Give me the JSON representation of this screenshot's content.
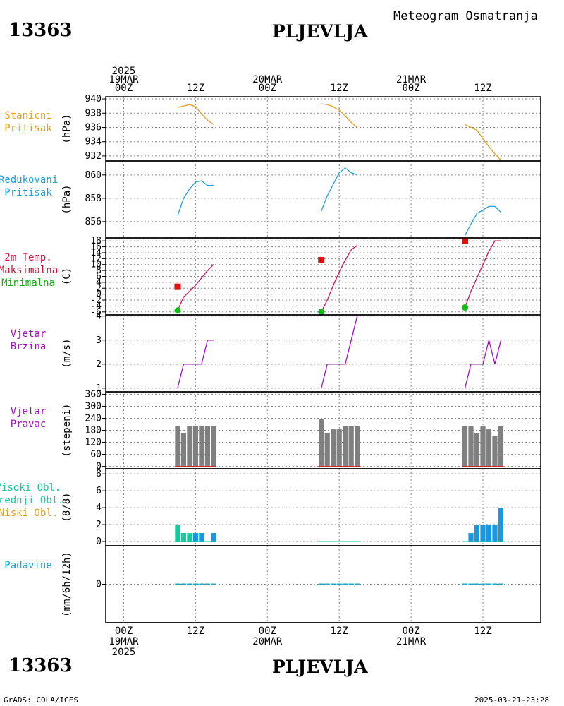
{
  "header": {
    "station_id": "13363",
    "station_name": "PLJEVLJA",
    "chart_title": "Meteogram Osmatranja"
  },
  "footer": {
    "station_id": "13363",
    "station_name": "PLJEVLJA",
    "credit": "GrADS: COLA/IGES",
    "timestamp": "2025-03-21-23:28"
  },
  "time_axis": {
    "hours_from_start": [
      0,
      12,
      24,
      36,
      48,
      60
    ],
    "top_labels": [
      {
        "hour": 0,
        "lines": [
          "2025",
          "19MAR",
          "00Z"
        ]
      },
      {
        "hour": 12,
        "lines": [
          "12Z"
        ]
      },
      {
        "hour": 24,
        "lines": [
          "20MAR",
          "00Z"
        ]
      },
      {
        "hour": 36,
        "lines": [
          "12Z"
        ]
      },
      {
        "hour": 48,
        "lines": [
          "21MAR",
          "00Z"
        ]
      },
      {
        "hour": 60,
        "lines": [
          "12Z"
        ]
      }
    ],
    "bottom_labels": [
      {
        "hour": 0,
        "lines": [
          "00Z",
          "19MAR",
          "2025"
        ]
      },
      {
        "hour": 12,
        "lines": [
          "12Z"
        ]
      },
      {
        "hour": 24,
        "lines": [
          "00Z",
          "20MAR"
        ]
      },
      {
        "hour": 36,
        "lines": [
          "12Z"
        ]
      },
      {
        "hour": 48,
        "lines": [
          "00Z",
          "21MAR"
        ]
      },
      {
        "hour": 60,
        "lines": [
          "12Z"
        ]
      }
    ]
  },
  "panel_labels": {
    "station_pressure": [
      "Stanicni",
      "Pritisak"
    ],
    "reduced_pressure": [
      "Redukovani",
      "Pritisak"
    ],
    "temperature": [
      "2m Temp.",
      "Maksimalna",
      "Minimalna"
    ],
    "wind_speed": [
      "Vjetar",
      "Brzina"
    ],
    "wind_direction": [
      "Vjetar",
      "Pravac"
    ],
    "clouds": [
      "Visoki Obl.",
      "Srednji Obl.",
      "Niski Obl."
    ],
    "precipitation": [
      "Padavine"
    ]
  },
  "panel_units": {
    "station_pressure": "(hPa)",
    "reduced_pressure": "(hPa)",
    "temperature": "(C)",
    "wind_speed": "(m/s)",
    "wind_direction": "(stepeni)",
    "clouds": "(8/8)",
    "precipitation": "(mm/6h/12h)"
  },
  "colors": {
    "station_pressure": "#e8a020",
    "reduced_pressure": "#1ea0d8",
    "temperature_line": "#c8145a",
    "temp_max_marker": "#e01010",
    "temp_min_marker": "#10c010",
    "label_red": "#d0103a",
    "label_green": "#10b010",
    "wind": "#a010c0",
    "wind_dir_bar": "#808080",
    "cloud_high": "#18c8a0",
    "cloud_mid": "#1898e0",
    "cloud_low_label": "#e0a020",
    "precip": "#18a8c8"
  },
  "chart_data": [
    {
      "panel": "station_pressure",
      "type": "line",
      "ylim": [
        931.3,
        940.3
      ],
      "yticks": [
        932,
        934,
        936,
        938,
        940
      ],
      "segments": [
        {
          "x": [
            9,
            10,
            11,
            12,
            13,
            14,
            15
          ],
          "y": [
            938.8,
            939.0,
            939.2,
            938.9,
            937.9,
            937.0,
            936.4
          ]
        },
        {
          "x": [
            33,
            34,
            35,
            36,
            37,
            38,
            39
          ],
          "y": [
            939.3,
            939.2,
            938.9,
            938.4,
            937.6,
            936.7,
            936.0
          ]
        },
        {
          "x": [
            57,
            58,
            59,
            60,
            61,
            62,
            63
          ],
          "y": [
            936.4,
            936.0,
            935.6,
            934.4,
            933.3,
            932.3,
            931.4
          ]
        }
      ]
    },
    {
      "panel": "reduced_pressure",
      "type": "line",
      "ylim": [
        854.6,
        861.2
      ],
      "yticks": [
        856,
        858,
        860
      ],
      "segments": [
        {
          "x": [
            9,
            10,
            11,
            12,
            13,
            14,
            15
          ],
          "y": [
            856.5,
            858.0,
            858.8,
            859.4,
            859.5,
            859.1,
            859.1
          ]
        },
        {
          "x": [
            33,
            34,
            35,
            36,
            37,
            38,
            39
          ],
          "y": [
            856.9,
            858.2,
            859.2,
            860.2,
            860.6,
            860.2,
            860.0
          ]
        },
        {
          "x": [
            57,
            58,
            59,
            60,
            61,
            62,
            63
          ],
          "y": [
            854.8,
            855.8,
            856.7,
            857.0,
            857.3,
            857.3,
            856.8
          ]
        }
      ]
    },
    {
      "panel": "temperature",
      "type": "line",
      "ylim": [
        -7,
        19
      ],
      "yticks": [
        -6,
        -4,
        -2,
        0,
        2,
        4,
        6,
        8,
        10,
        12,
        14,
        16,
        18
      ],
      "segments": [
        {
          "x": [
            9,
            10,
            11,
            12,
            13,
            14,
            15
          ],
          "y": [
            -5.5,
            -1,
            1,
            3,
            5.5,
            8,
            10
          ]
        },
        {
          "x": [
            33,
            34,
            35,
            36,
            37,
            38,
            39
          ],
          "y": [
            -6,
            -2,
            3,
            7.5,
            11.5,
            15,
            16.5
          ]
        },
        {
          "x": [
            57,
            58,
            59,
            60,
            61,
            62,
            63
          ],
          "y": [
            -4.5,
            1,
            5.5,
            10,
            14.5,
            18,
            18
          ]
        }
      ],
      "max_markers": [
        {
          "x": 9,
          "y": 2.5
        },
        {
          "x": 33,
          "y": 11.5
        },
        {
          "x": 57,
          "y": 18
        }
      ],
      "min_markers": [
        {
          "x": 9,
          "y": -5.5
        },
        {
          "x": 33,
          "y": -6
        },
        {
          "x": 57,
          "y": -4.5
        }
      ]
    },
    {
      "panel": "wind_speed",
      "type": "line",
      "ylim": [
        0.85,
        4.05
      ],
      "yticks": [
        1,
        2,
        3,
        4
      ],
      "segments": [
        {
          "x": [
            9,
            10,
            11,
            12,
            13,
            14,
            15
          ],
          "y": [
            1,
            2,
            2,
            2,
            2,
            3,
            3
          ]
        },
        {
          "x": [
            33,
            34,
            35,
            36,
            37,
            38,
            39
          ],
          "y": [
            1,
            2,
            2,
            2,
            2,
            3,
            4
          ]
        },
        {
          "x": [
            57,
            58,
            59,
            60,
            61,
            62,
            63
          ],
          "y": [
            1,
            2,
            2,
            2,
            3,
            2,
            3
          ]
        }
      ]
    },
    {
      "panel": "wind_direction",
      "type": "bar",
      "ylim": [
        -12,
        372
      ],
      "yticks": [
        0,
        60,
        120,
        180,
        240,
        300,
        360
      ],
      "x": [
        9,
        10,
        11,
        12,
        13,
        14,
        15,
        33,
        34,
        35,
        36,
        37,
        38,
        39,
        57,
        58,
        59,
        60,
        61,
        62,
        63
      ],
      "values": [
        200,
        165,
        200,
        200,
        200,
        200,
        200,
        235,
        165,
        185,
        185,
        200,
        200,
        200,
        200,
        200,
        165,
        200,
        185,
        150,
        200
      ]
    },
    {
      "panel": "clouds",
      "type": "bar",
      "ylim": [
        -0.5,
        8.6
      ],
      "yticks": [
        0,
        2,
        4,
        6,
        8
      ],
      "series": [
        {
          "name": "Visoki Obl.",
          "x": [
            9,
            10,
            11
          ],
          "values": [
            2,
            1,
            1
          ]
        },
        {
          "name": "Srednji Obl.",
          "x": [
            12,
            13,
            15,
            58,
            59,
            60,
            61,
            62,
            63
          ],
          "values": [
            1,
            1,
            1,
            1,
            2,
            2,
            2,
            2,
            4
          ]
        }
      ]
    },
    {
      "panel": "precipitation",
      "type": "bar",
      "ylim": [
        -4.5,
        4.5
      ],
      "yticks": [
        0
      ],
      "x": [
        9,
        10,
        11,
        12,
        13,
        14,
        15,
        33,
        34,
        35,
        36,
        37,
        38,
        39,
        57,
        58,
        59,
        60,
        61,
        62,
        63
      ],
      "values": [
        0,
        0,
        0,
        0,
        0,
        0,
        0,
        0,
        0,
        0,
        0,
        0,
        0,
        0,
        0,
        0,
        0,
        0,
        0,
        0,
        0
      ]
    }
  ]
}
